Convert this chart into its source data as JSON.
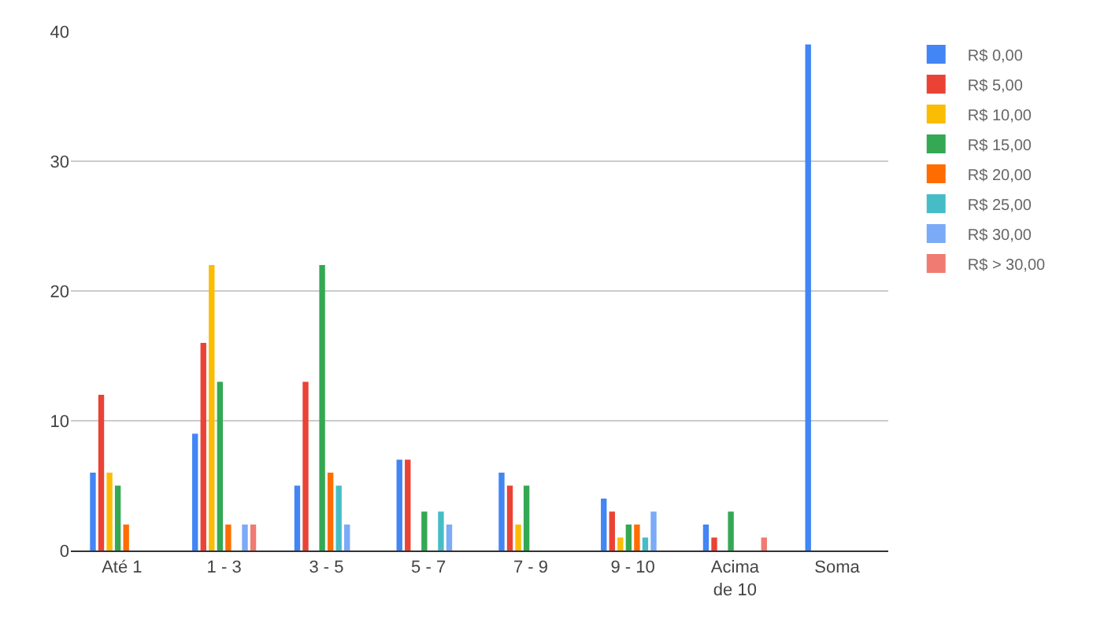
{
  "chart_data": {
    "type": "bar",
    "categories": [
      "Até 1",
      "1 - 3",
      "3 - 5",
      "5 - 7",
      "7 - 9",
      "9 - 10",
      "Acima de 10",
      "Soma"
    ],
    "series": [
      {
        "name": "R$ 0,00",
        "color": "#4285f4",
        "values": [
          6,
          9,
          5,
          7,
          6,
          4,
          2,
          39
        ]
      },
      {
        "name": "R$ 5,00",
        "color": "#ea4335",
        "values": [
          12,
          16,
          13,
          7,
          5,
          3,
          1,
          0
        ]
      },
      {
        "name": "R$ 10,00",
        "color": "#fbbc04",
        "values": [
          6,
          22,
          0,
          0,
          2,
          1,
          0,
          0
        ]
      },
      {
        "name": "R$ 15,00",
        "color": "#34a853",
        "values": [
          5,
          13,
          22,
          3,
          5,
          2,
          3,
          0
        ]
      },
      {
        "name": "R$ 20,00",
        "color": "#ff6d01",
        "values": [
          2,
          2,
          6,
          0,
          0,
          2,
          0,
          0
        ]
      },
      {
        "name": "R$ 25,00",
        "color": "#46bdc6",
        "values": [
          0,
          0,
          5,
          3,
          0,
          1,
          0,
          0
        ]
      },
      {
        "name": "R$ 30,00",
        "color": "#7baaf7",
        "values": [
          0,
          2,
          2,
          2,
          0,
          3,
          0,
          0
        ]
      },
      {
        "name": "R$ > 30,00",
        "color": "#f07b72",
        "values": [
          0,
          2,
          0,
          0,
          0,
          0,
          1,
          0
        ]
      }
    ],
    "ylim": [
      0,
      40
    ],
    "yticks": [
      0,
      10,
      20,
      30,
      40
    ],
    "grid": "y",
    "legend": "top right"
  }
}
